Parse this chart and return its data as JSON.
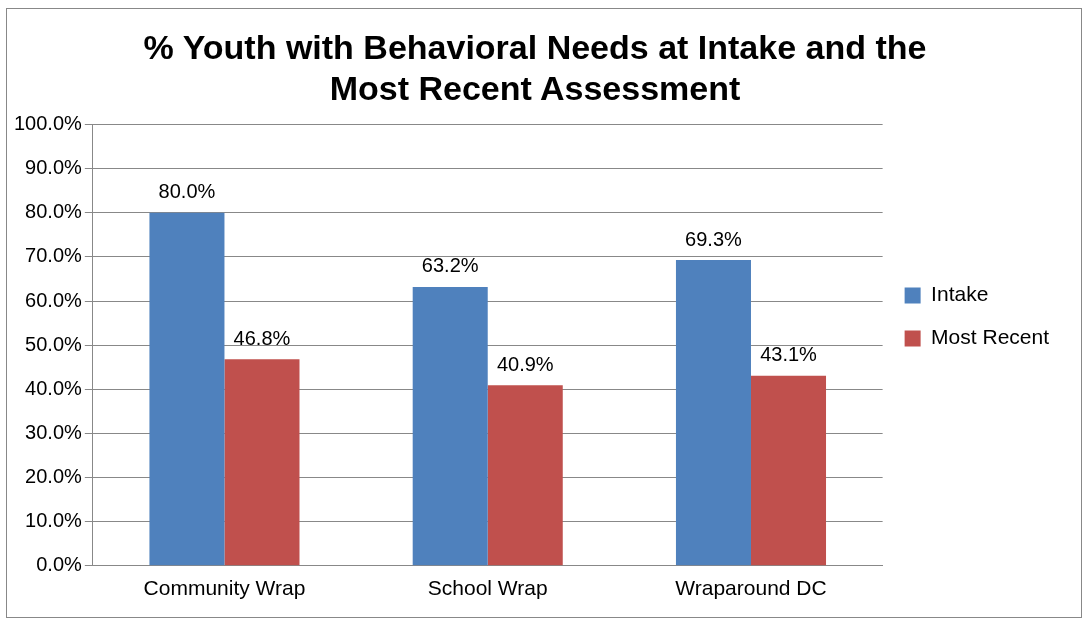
{
  "chart_data": {
    "type": "bar",
    "title": "% Youth with Behavioral Needs at Intake and the Most Recent Assessment",
    "categories": [
      "Community Wrap",
      "School Wrap",
      "Wraparound DC"
    ],
    "series": [
      {
        "name": "Intake",
        "color": "#4f81bd",
        "values": [
          80.0,
          63.2,
          69.3
        ],
        "value_labels": [
          "80.0%",
          "63.2%",
          "69.3%"
        ]
      },
      {
        "name": "Most Recent",
        "color": "#c0504d",
        "values": [
          46.8,
          40.9,
          43.1
        ],
        "value_labels": [
          "46.8%",
          "40.9%",
          "43.1%"
        ]
      }
    ],
    "ylim": [
      0,
      100
    ],
    "yticks": [
      {
        "value": 0,
        "label": "0.0%"
      },
      {
        "value": 10,
        "label": "10.0%"
      },
      {
        "value": 20,
        "label": "20.0%"
      },
      {
        "value": 30,
        "label": "30.0%"
      },
      {
        "value": 40,
        "label": "40.0%"
      },
      {
        "value": 50,
        "label": "50.0%"
      },
      {
        "value": 60,
        "label": "60.0%"
      },
      {
        "value": 70,
        "label": "70.0%"
      },
      {
        "value": 80,
        "label": "80.0%"
      },
      {
        "value": 90,
        "label": "90.0%"
      },
      {
        "value": 100,
        "label": "100.0%"
      }
    ],
    "grid": "y",
    "legend": "right"
  }
}
